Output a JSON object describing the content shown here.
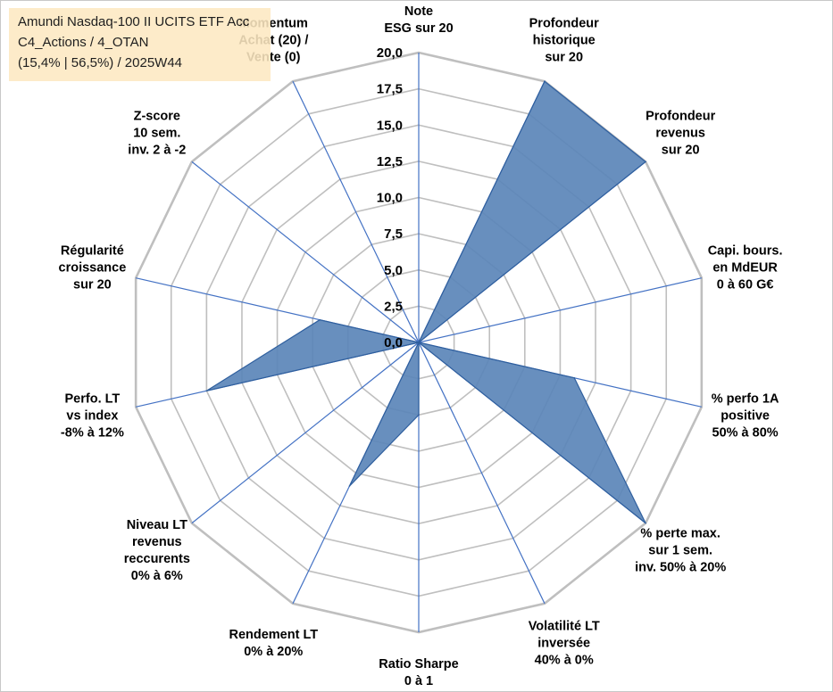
{
  "info_box": {
    "line1": "Amundi Nasdaq-100 II UCITS ETF Acc",
    "line2": "C4_Actions / 4_OTAN",
    "line3": "(15,4% | 56,5%) / 2025W44"
  },
  "chart_data": {
    "type": "radar",
    "title": "Amundi Nasdaq-100 II UCITS ETF Acc",
    "rmin": 0,
    "rmax": 20,
    "ticks": [
      "0,0",
      "2,5",
      "5,0",
      "7,5",
      "10,0",
      "12,5",
      "15,0",
      "17,5",
      "20,0"
    ],
    "axes": [
      {
        "lines": [
          "Note",
          "ESG sur 20"
        ]
      },
      {
        "lines": [
          "Profondeur",
          "historique",
          "sur 20"
        ]
      },
      {
        "lines": [
          "Profondeur",
          "revenus",
          "sur 20"
        ]
      },
      {
        "lines": [
          "Capi. bours.",
          "en MdEUR",
          "0 à 60 G€"
        ]
      },
      {
        "lines": [
          "% perfo 1A",
          "positive",
          "50% à 80%"
        ]
      },
      {
        "lines": [
          "% perte max.",
          "sur 1 sem.",
          "inv. 50% à 20%"
        ]
      },
      {
        "lines": [
          "Volatilité LT",
          "inversée",
          "40% à 0%"
        ]
      },
      {
        "lines": [
          "Ratio Sharpe",
          "0 à 1"
        ]
      },
      {
        "lines": [
          "Rendement LT",
          "0% à 20%"
        ]
      },
      {
        "lines": [
          "Niveau LT",
          "revenus",
          "reccurents",
          "0% à 6%"
        ]
      },
      {
        "lines": [
          "Perfo. LT",
          "vs index",
          "-8% à 12%"
        ]
      },
      {
        "lines": [
          "Régularité",
          "croissance",
          "sur 20"
        ]
      },
      {
        "lines": [
          "Z-score",
          "10 sem.",
          "inv. 2 à -2"
        ]
      },
      {
        "lines": [
          "Momentum",
          "Achat (20) /",
          "Vente (0)"
        ]
      }
    ],
    "series": [
      {
        "name": "Amundi Nasdaq-100 II UCITS ETF Acc",
        "values": [
          0,
          20,
          20,
          0,
          11,
          20,
          0,
          5,
          11,
          0,
          15,
          7,
          0,
          0
        ],
        "fill": "#5b86b8",
        "stroke": "#2f5f9e"
      }
    ],
    "grid": true,
    "grid_color": "#bfbfbf",
    "spoke_color": "#4472c4"
  }
}
